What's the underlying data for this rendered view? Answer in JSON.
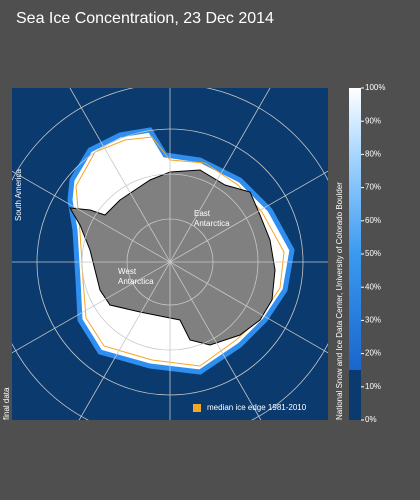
{
  "title": "Sea Ice Concentration, 23 Dec 2014",
  "map_labels": {
    "east": [
      "East",
      "Antarctica"
    ],
    "west": [
      "West",
      "Antarctica"
    ],
    "south_america": "South America"
  },
  "legend": {
    "label": "median ice edge 1981-2010",
    "color": "#f5a623"
  },
  "status": "final data",
  "credit": "National Snow and Ice Data Center, University of Colorado Boulder",
  "colorbar": {
    "ticks": [
      {
        "value": 0,
        "label": "0%"
      },
      {
        "value": 10,
        "label": "10%"
      },
      {
        "value": 20,
        "label": "20%"
      },
      {
        "value": 30,
        "label": "30%"
      },
      {
        "value": 40,
        "label": "40%"
      },
      {
        "value": 50,
        "label": "50%"
      },
      {
        "value": 60,
        "label": "60%"
      },
      {
        "value": 70,
        "label": "70%"
      },
      {
        "value": 80,
        "label": "80%"
      },
      {
        "value": 90,
        "label": "90%"
      },
      {
        "value": 100,
        "label": "100%"
      }
    ]
  }
}
